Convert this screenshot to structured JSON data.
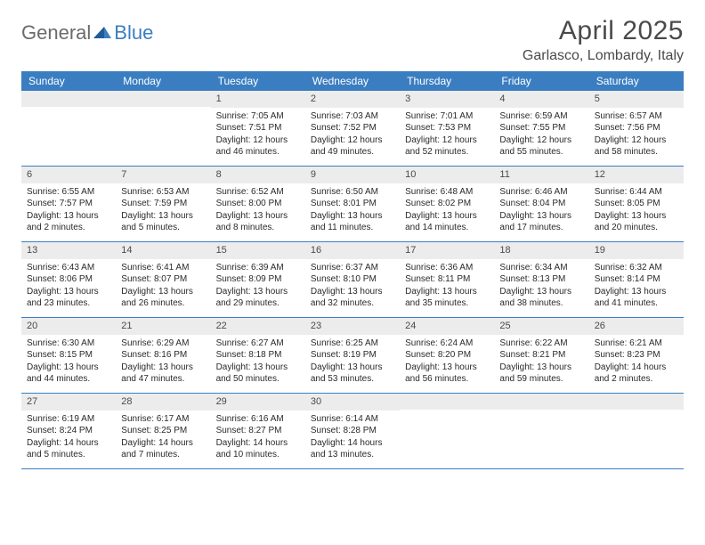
{
  "brand": {
    "part1": "General",
    "part2": "Blue"
  },
  "title": "April 2025",
  "location": "Garlasco, Lombardy, Italy",
  "colors": {
    "header_bg": "#3a7ec1",
    "daynum_bg": "#ececec",
    "text": "#2a2a2a",
    "title_text": "#4a4a4a",
    "page_bg": "#ffffff"
  },
  "weekdays": [
    "Sunday",
    "Monday",
    "Tuesday",
    "Wednesday",
    "Thursday",
    "Friday",
    "Saturday"
  ],
  "weeks": [
    [
      null,
      null,
      {
        "n": "1",
        "sr": "7:05 AM",
        "ss": "7:51 PM",
        "dl": "12 hours and 46 minutes."
      },
      {
        "n": "2",
        "sr": "7:03 AM",
        "ss": "7:52 PM",
        "dl": "12 hours and 49 minutes."
      },
      {
        "n": "3",
        "sr": "7:01 AM",
        "ss": "7:53 PM",
        "dl": "12 hours and 52 minutes."
      },
      {
        "n": "4",
        "sr": "6:59 AM",
        "ss": "7:55 PM",
        "dl": "12 hours and 55 minutes."
      },
      {
        "n": "5",
        "sr": "6:57 AM",
        "ss": "7:56 PM",
        "dl": "12 hours and 58 minutes."
      }
    ],
    [
      {
        "n": "6",
        "sr": "6:55 AM",
        "ss": "7:57 PM",
        "dl": "13 hours and 2 minutes."
      },
      {
        "n": "7",
        "sr": "6:53 AM",
        "ss": "7:59 PM",
        "dl": "13 hours and 5 minutes."
      },
      {
        "n": "8",
        "sr": "6:52 AM",
        "ss": "8:00 PM",
        "dl": "13 hours and 8 minutes."
      },
      {
        "n": "9",
        "sr": "6:50 AM",
        "ss": "8:01 PM",
        "dl": "13 hours and 11 minutes."
      },
      {
        "n": "10",
        "sr": "6:48 AM",
        "ss": "8:02 PM",
        "dl": "13 hours and 14 minutes."
      },
      {
        "n": "11",
        "sr": "6:46 AM",
        "ss": "8:04 PM",
        "dl": "13 hours and 17 minutes."
      },
      {
        "n": "12",
        "sr": "6:44 AM",
        "ss": "8:05 PM",
        "dl": "13 hours and 20 minutes."
      }
    ],
    [
      {
        "n": "13",
        "sr": "6:43 AM",
        "ss": "8:06 PM",
        "dl": "13 hours and 23 minutes."
      },
      {
        "n": "14",
        "sr": "6:41 AM",
        "ss": "8:07 PM",
        "dl": "13 hours and 26 minutes."
      },
      {
        "n": "15",
        "sr": "6:39 AM",
        "ss": "8:09 PM",
        "dl": "13 hours and 29 minutes."
      },
      {
        "n": "16",
        "sr": "6:37 AM",
        "ss": "8:10 PM",
        "dl": "13 hours and 32 minutes."
      },
      {
        "n": "17",
        "sr": "6:36 AM",
        "ss": "8:11 PM",
        "dl": "13 hours and 35 minutes."
      },
      {
        "n": "18",
        "sr": "6:34 AM",
        "ss": "8:13 PM",
        "dl": "13 hours and 38 minutes."
      },
      {
        "n": "19",
        "sr": "6:32 AM",
        "ss": "8:14 PM",
        "dl": "13 hours and 41 minutes."
      }
    ],
    [
      {
        "n": "20",
        "sr": "6:30 AM",
        "ss": "8:15 PM",
        "dl": "13 hours and 44 minutes."
      },
      {
        "n": "21",
        "sr": "6:29 AM",
        "ss": "8:16 PM",
        "dl": "13 hours and 47 minutes."
      },
      {
        "n": "22",
        "sr": "6:27 AM",
        "ss": "8:18 PM",
        "dl": "13 hours and 50 minutes."
      },
      {
        "n": "23",
        "sr": "6:25 AM",
        "ss": "8:19 PM",
        "dl": "13 hours and 53 minutes."
      },
      {
        "n": "24",
        "sr": "6:24 AM",
        "ss": "8:20 PM",
        "dl": "13 hours and 56 minutes."
      },
      {
        "n": "25",
        "sr": "6:22 AM",
        "ss": "8:21 PM",
        "dl": "13 hours and 59 minutes."
      },
      {
        "n": "26",
        "sr": "6:21 AM",
        "ss": "8:23 PM",
        "dl": "14 hours and 2 minutes."
      }
    ],
    [
      {
        "n": "27",
        "sr": "6:19 AM",
        "ss": "8:24 PM",
        "dl": "14 hours and 5 minutes."
      },
      {
        "n": "28",
        "sr": "6:17 AM",
        "ss": "8:25 PM",
        "dl": "14 hours and 7 minutes."
      },
      {
        "n": "29",
        "sr": "6:16 AM",
        "ss": "8:27 PM",
        "dl": "14 hours and 10 minutes."
      },
      {
        "n": "30",
        "sr": "6:14 AM",
        "ss": "8:28 PM",
        "dl": "14 hours and 13 minutes."
      },
      null,
      null,
      null
    ]
  ],
  "labels": {
    "sunrise": "Sunrise: ",
    "sunset": "Sunset: ",
    "daylight": "Daylight: "
  }
}
